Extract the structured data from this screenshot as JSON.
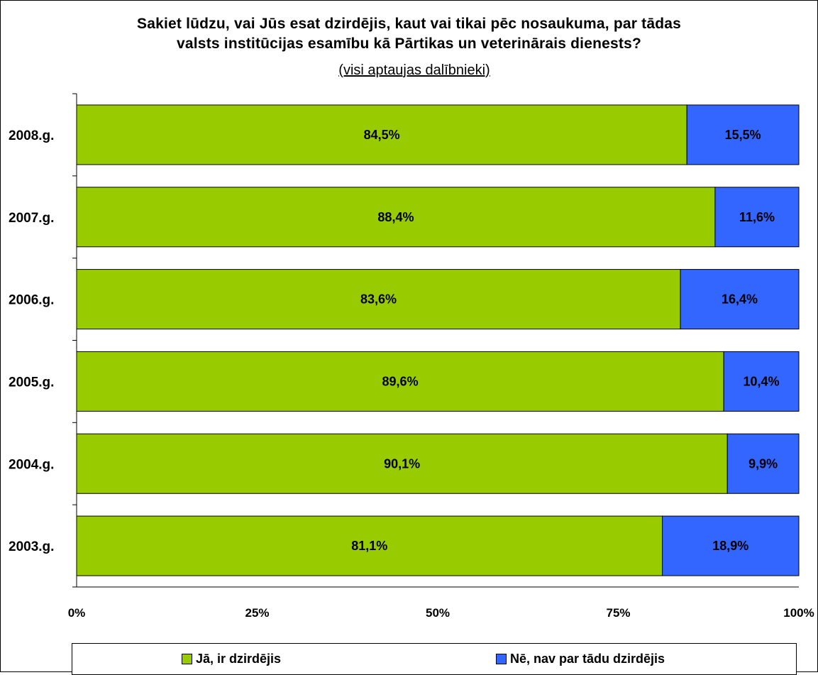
{
  "chart_data": {
    "type": "bar",
    "orientation": "horizontal",
    "stacked": true,
    "title_lines": [
      "Sakiet lūdzu, vai Jūs esat dzirdējis, kaut vai tikai pēc nosaukuma, par tādas",
      "valsts institūcijas esamību kā Pārtikas un veterinārais dienests?"
    ],
    "subtitle": "(visi aptaujas dalībnieki)",
    "categories": [
      "2008.g.",
      "2007.g.",
      "2006.g.",
      "2005.g.",
      "2004.g.",
      "2003.g."
    ],
    "series": [
      {
        "name": "Jā, ir dzirdējis",
        "color": "#99cc00",
        "values": [
          84.5,
          88.4,
          83.6,
          89.6,
          90.1,
          81.1
        ],
        "labels": [
          "84,5%",
          "88,4%",
          "83,6%",
          "89,6%",
          "90,1%",
          "81,1%"
        ]
      },
      {
        "name": "Nē, nav par tādu dzirdējis",
        "color": "#3366ff",
        "values": [
          15.5,
          11.6,
          16.4,
          10.4,
          9.9,
          18.9
        ],
        "labels": [
          "15,5%",
          "11,6%",
          "16,4%",
          "10,4%",
          "9,9%",
          "18,9%"
        ]
      }
    ],
    "xlim": [
      0,
      100
    ],
    "x_ticks": [
      0,
      25,
      50,
      75,
      100
    ],
    "x_tick_labels": [
      "0%",
      "25%",
      "50%",
      "75%",
      "100%"
    ],
    "grid": false,
    "legend_position": "bottom"
  }
}
